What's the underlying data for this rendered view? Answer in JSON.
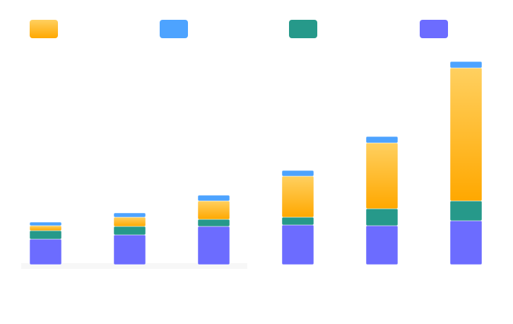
{
  "chart_data": {
    "type": "bar",
    "stacked": true,
    "title": "",
    "xlabel": "",
    "ylabel": "",
    "categories": [
      "",
      "",
      "",
      "",
      "",
      ""
    ],
    "ylim": [
      0,
      290
    ],
    "grid": false,
    "legend_position": "top",
    "series": [
      {
        "color": "#6c6cff",
        "values": [
          36,
          42,
          54,
          56,
          55,
          62
        ]
      },
      {
        "color": "#26998a",
        "values": [
          12,
          12,
          10,
          11,
          24,
          28
        ]
      },
      {
        "color": "#ffae00",
        "values": [
          7,
          13,
          26,
          58,
          93,
          188
        ]
      },
      {
        "color": "#4da3ff",
        "values": [
          5,
          6,
          8,
          8,
          9,
          9
        ]
      }
    ],
    "legend": [
      {
        "series": 2,
        "color": "#ffae00"
      },
      {
        "series": 3,
        "color": "#4da3ff"
      },
      {
        "series": 1,
        "color": "#26998a"
      },
      {
        "series": 0,
        "color": "#6c6cff"
      }
    ]
  }
}
